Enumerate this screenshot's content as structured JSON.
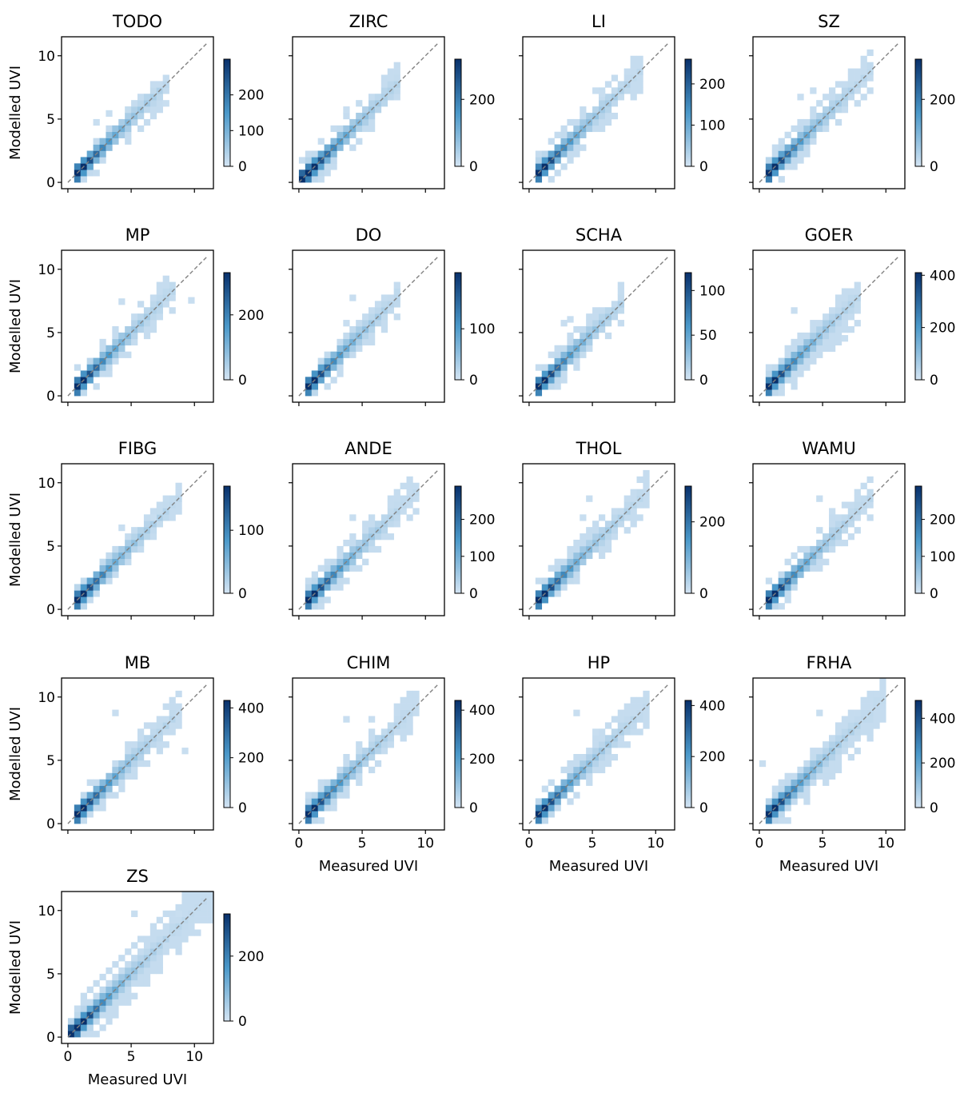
{
  "figure": {
    "xlabel": "Measured UVI",
    "ylabel": "Modelled UVI",
    "colormap": "Blues",
    "colors": {
      "light": "#d3e4f3",
      "mid": "#4a98c9",
      "dark": "#08306b",
      "line": "#808080"
    }
  },
  "chart_data": [
    {
      "type": "heatmap",
      "title": "TODO",
      "xlim": [
        -0.5,
        11.5
      ],
      "ylim": [
        -0.5,
        11.5
      ],
      "xticks": [
        0,
        5,
        10
      ],
      "yticks": [
        0,
        5,
        10
      ],
      "ref_line": [
        0,
        11
      ],
      "cbar_max": 300,
      "cbar_ticks": [
        0,
        100,
        200
      ],
      "x_extent": [
        0.5,
        7.5
      ],
      "spread": 0.9,
      "outliers": [
        [
          2.0,
          4.5
        ],
        [
          3.0,
          5.2
        ],
        [
          7.5,
          6.0
        ]
      ],
      "show_xticklabels": false,
      "show_yticklabels": true
    },
    {
      "type": "heatmap",
      "title": "ZIRC",
      "xlim": [
        -0.5,
        11.5
      ],
      "ylim": [
        -0.5,
        11.5
      ],
      "xticks": [
        0,
        5,
        10
      ],
      "yticks": [
        0,
        5,
        10
      ],
      "ref_line": [
        0,
        11
      ],
      "cbar_max": 320,
      "cbar_ticks": [
        0,
        200
      ],
      "x_extent": [
        0.0,
        7.5
      ],
      "spread": 1.0,
      "outliers": [
        [
          1.5,
          3.0
        ],
        [
          3.5,
          5.5
        ]
      ],
      "show_xticklabels": false,
      "show_yticklabels": false
    },
    {
      "type": "heatmap",
      "title": "LI",
      "xlim": [
        -0.5,
        11.5
      ],
      "ylim": [
        -0.5,
        11.5
      ],
      "xticks": [
        0,
        5,
        10
      ],
      "yticks": [
        0,
        5,
        10
      ],
      "ref_line": [
        0,
        11
      ],
      "cbar_max": 260,
      "cbar_ticks": [
        0,
        100,
        200
      ],
      "x_extent": [
        0.5,
        8.5
      ],
      "spread": 1.3,
      "outliers": [
        [
          5.0,
          7.0
        ],
        [
          5.5,
          6.8
        ]
      ],
      "show_xticklabels": false,
      "show_yticklabels": false
    },
    {
      "type": "heatmap",
      "title": "SZ",
      "xlim": [
        -0.5,
        11.5
      ],
      "ylim": [
        -0.5,
        11.5
      ],
      "xticks": [
        0,
        5,
        10
      ],
      "yticks": [
        0,
        5,
        10
      ],
      "ref_line": [
        0,
        11
      ],
      "cbar_max": 320,
      "cbar_ticks": [
        0,
        200
      ],
      "x_extent": [
        0.5,
        8.5
      ],
      "spread": 1.0,
      "outliers": [
        [
          3.0,
          6.5
        ],
        [
          4.0,
          7.0
        ]
      ],
      "show_xticklabels": false,
      "show_yticklabels": false
    },
    {
      "type": "heatmap",
      "title": "MP",
      "xlim": [
        -0.5,
        11.5
      ],
      "ylim": [
        -0.5,
        11.5
      ],
      "xticks": [
        0,
        5,
        10
      ],
      "yticks": [
        0,
        5,
        10
      ],
      "ref_line": [
        0,
        11
      ],
      "cbar_max": 330,
      "cbar_ticks": [
        0,
        200
      ],
      "x_extent": [
        0.5,
        8.0
      ],
      "spread": 1.2,
      "outliers": [
        [
          9.5,
          7.3
        ],
        [
          4.0,
          7.2
        ]
      ],
      "show_xticklabels": false,
      "show_yticklabels": true
    },
    {
      "type": "heatmap",
      "title": "DO",
      "xlim": [
        -0.5,
        11.5
      ],
      "ylim": [
        -0.5,
        11.5
      ],
      "xticks": [
        0,
        5,
        10
      ],
      "yticks": [
        0,
        5,
        10
      ],
      "ref_line": [
        0,
        11
      ],
      "cbar_max": 210,
      "cbar_ticks": [
        0,
        100
      ],
      "x_extent": [
        0.5,
        7.5
      ],
      "spread": 0.9,
      "outliers": [
        [
          4.0,
          7.5
        ],
        [
          3.5,
          5.5
        ]
      ],
      "show_xticklabels": false,
      "show_yticklabels": false
    },
    {
      "type": "heatmap",
      "title": "SCHA",
      "xlim": [
        -0.5,
        11.5
      ],
      "ylim": [
        -0.5,
        11.5
      ],
      "xticks": [
        0,
        5,
        10
      ],
      "yticks": [
        0,
        5,
        10
      ],
      "ref_line": [
        0,
        11
      ],
      "cbar_max": 120,
      "cbar_ticks": [
        0,
        50,
        100
      ],
      "x_extent": [
        0.5,
        7.0
      ],
      "spread": 1.0,
      "outliers": [
        [
          2.5,
          5.5
        ],
        [
          3.0,
          5.8
        ]
      ],
      "show_xticklabels": false,
      "show_yticklabels": false
    },
    {
      "type": "heatmap",
      "title": "GOER",
      "xlim": [
        -0.5,
        11.5
      ],
      "ylim": [
        -0.5,
        11.5
      ],
      "xticks": [
        0,
        5,
        10
      ],
      "yticks": [
        0,
        5,
        10
      ],
      "ref_line": [
        0,
        11
      ],
      "cbar_max": 410,
      "cbar_ticks": [
        0,
        200,
        400
      ],
      "x_extent": [
        0.5,
        7.5
      ],
      "spread": 1.4,
      "outliers": [
        [
          2.5,
          6.5
        ],
        [
          6.5,
          4.3
        ]
      ],
      "show_xticklabels": false,
      "show_yticklabels": false
    },
    {
      "type": "heatmap",
      "title": "FIBG",
      "xlim": [
        -0.5,
        11.5
      ],
      "ylim": [
        -0.5,
        11.5
      ],
      "xticks": [
        0,
        5,
        10
      ],
      "yticks": [
        0,
        5,
        10
      ],
      "ref_line": [
        0,
        11
      ],
      "cbar_max": 170,
      "cbar_ticks": [
        0,
        100
      ],
      "x_extent": [
        0.5,
        8.5
      ],
      "spread": 0.8,
      "outliers": [
        [
          4.0,
          6.2
        ],
        [
          6.5,
          7.0
        ]
      ],
      "show_xticklabels": false,
      "show_yticklabels": true
    },
    {
      "type": "heatmap",
      "title": "ANDE",
      "xlim": [
        -0.5,
        11.5
      ],
      "ylim": [
        -0.5,
        11.5
      ],
      "xticks": [
        0,
        5,
        10
      ],
      "yticks": [
        0,
        5,
        10
      ],
      "ref_line": [
        0,
        11
      ],
      "cbar_max": 290,
      "cbar_ticks": [
        0,
        100,
        200
      ],
      "x_extent": [
        0.5,
        9.0
      ],
      "spread": 1.0,
      "outliers": [
        [
          4.0,
          7.0
        ]
      ],
      "show_xticklabels": false,
      "show_yticklabels": false
    },
    {
      "type": "heatmap",
      "title": "THOL",
      "xlim": [
        -0.5,
        11.5
      ],
      "ylim": [
        -0.5,
        11.5
      ],
      "xticks": [
        0,
        5,
        10
      ],
      "yticks": [
        0,
        5,
        10
      ],
      "ref_line": [
        0,
        11
      ],
      "cbar_max": 300,
      "cbar_ticks": [
        0,
        200
      ],
      "x_extent": [
        0.5,
        9.0
      ],
      "spread": 1.1,
      "outliers": [
        [
          4.5,
          8.5
        ],
        [
          4.0,
          7.0
        ]
      ],
      "show_xticklabels": false,
      "show_yticklabels": false
    },
    {
      "type": "heatmap",
      "title": "WAMU",
      "xlim": [
        -0.5,
        11.5
      ],
      "ylim": [
        -0.5,
        11.5
      ],
      "xticks": [
        0,
        5,
        10
      ],
      "yticks": [
        0,
        5,
        10
      ],
      "ref_line": [
        0,
        11
      ],
      "cbar_max": 290,
      "cbar_ticks": [
        0,
        100,
        200
      ],
      "x_extent": [
        0.5,
        8.5
      ],
      "spread": 1.1,
      "outliers": [
        [
          4.5,
          8.5
        ],
        [
          5.5,
          7.5
        ]
      ],
      "show_xticklabels": false,
      "show_yticklabels": false
    },
    {
      "type": "heatmap",
      "title": "MB",
      "xlim": [
        -0.5,
        11.5
      ],
      "ylim": [
        -0.5,
        11.5
      ],
      "xticks": [
        0,
        5,
        10
      ],
      "yticks": [
        0,
        5,
        10
      ],
      "ref_line": [
        0,
        11
      ],
      "cbar_max": 430,
      "cbar_ticks": [
        0,
        200,
        400
      ],
      "x_extent": [
        0.5,
        8.5
      ],
      "spread": 1.3,
      "outliers": [
        [
          9.0,
          5.5
        ],
        [
          3.5,
          8.5
        ]
      ],
      "show_xticklabels": false,
      "show_yticklabels": true
    },
    {
      "type": "heatmap",
      "title": "CHIM",
      "xlim": [
        -0.5,
        11.5
      ],
      "ylim": [
        -0.5,
        11.5
      ],
      "xticks": [
        0,
        5,
        10
      ],
      "yticks": [
        0,
        5,
        10
      ],
      "ref_line": [
        0,
        11
      ],
      "cbar_max": 440,
      "cbar_ticks": [
        0,
        200,
        400
      ],
      "x_extent": [
        0.5,
        9.0
      ],
      "spread": 1.3,
      "outliers": [
        [
          3.5,
          8.0
        ],
        [
          5.5,
          8.0
        ]
      ],
      "show_xticklabels": true,
      "show_yticklabels": false
    },
    {
      "type": "heatmap",
      "title": "HP",
      "xlim": [
        -0.5,
        11.5
      ],
      "ylim": [
        -0.5,
        11.5
      ],
      "xticks": [
        0,
        5,
        10
      ],
      "yticks": [
        0,
        5,
        10
      ],
      "ref_line": [
        0,
        11
      ],
      "cbar_max": 420,
      "cbar_ticks": [
        0,
        200,
        400
      ],
      "x_extent": [
        0.5,
        9.0
      ],
      "spread": 1.2,
      "outliers": [
        [
          3.5,
          8.5
        ],
        [
          5.0,
          7.0
        ]
      ],
      "show_xticklabels": true,
      "show_yticklabels": false
    },
    {
      "type": "heatmap",
      "title": "FRHA",
      "xlim": [
        -0.5,
        11.5
      ],
      "ylim": [
        -0.5,
        11.5
      ],
      "xticks": [
        0,
        5,
        10
      ],
      "yticks": [
        0,
        5,
        10
      ],
      "ref_line": [
        0,
        11
      ],
      "cbar_max": 480,
      "cbar_ticks": [
        0,
        200,
        400
      ],
      "x_extent": [
        0.5,
        9.5
      ],
      "spread": 1.4,
      "outliers": [
        [
          0.0,
          4.5
        ],
        [
          4.5,
          8.5
        ]
      ],
      "show_xticklabels": true,
      "show_yticklabels": false
    },
    {
      "type": "heatmap",
      "title": "ZS",
      "xlim": [
        -0.5,
        11.5
      ],
      "ylim": [
        -0.5,
        11.5
      ],
      "xticks": [
        0,
        5,
        10
      ],
      "yticks": [
        0,
        5,
        10
      ],
      "ref_line": [
        0,
        11
      ],
      "cbar_max": 330,
      "cbar_ticks": [
        0,
        200
      ],
      "x_extent": [
        0.0,
        11.0
      ],
      "spread": 1.8,
      "outliers": [
        [
          5.0,
          9.5
        ],
        [
          8.5,
          9.5
        ]
      ],
      "show_xticklabels": true,
      "show_yticklabels": true
    }
  ]
}
